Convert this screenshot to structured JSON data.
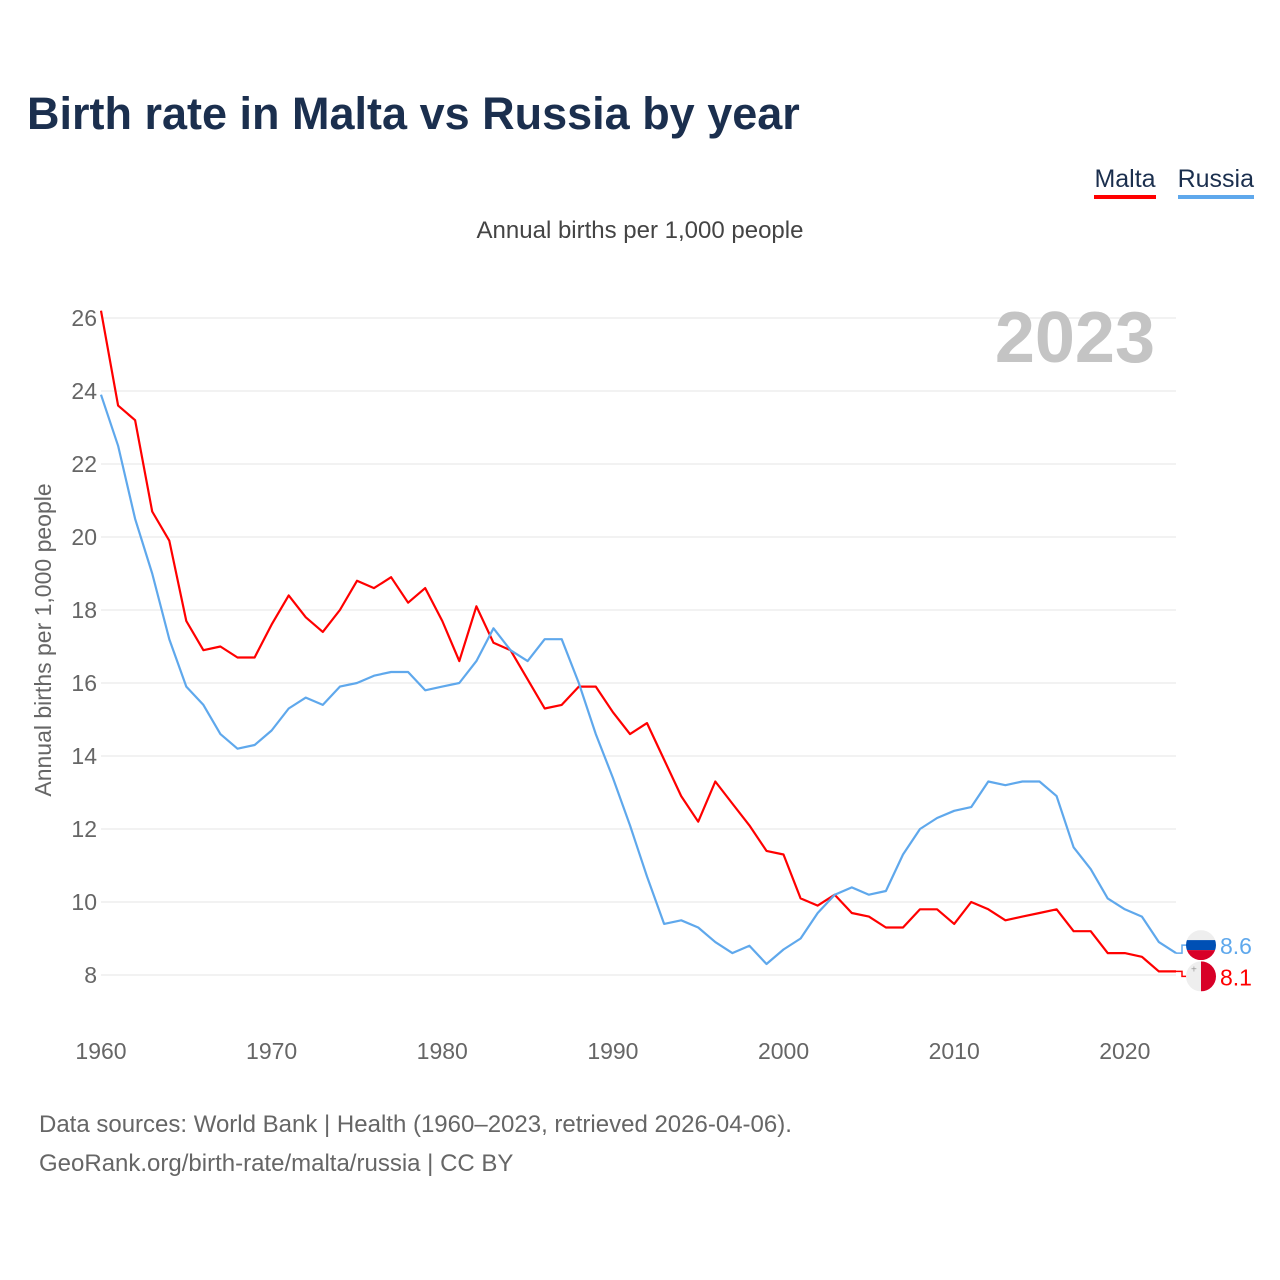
{
  "title": "Birth rate in Malta vs Russia by year",
  "subtitle": "Annual births per 1,000 people",
  "footer": {
    "line1": "Data sources: World Bank | Health (1960–2023, retrieved 2026-04-06).",
    "line2": "GeoRank.org/birth-rate/malta/russia | CC BY"
  },
  "chart_data": {
    "type": "line",
    "title": "Birth rate in Malta vs Russia by year",
    "ylabel": "Annual births per 1,000 people",
    "xlabel": "",
    "year_watermark": "2023",
    "xlim": [
      1960,
      2023
    ],
    "ylim": [
      7,
      26.5
    ],
    "xticks": [
      "1960",
      "1970",
      "1980",
      "1990",
      "2000",
      "2010",
      "2020"
    ],
    "yticks": [
      "8",
      "10",
      "12",
      "14",
      "16",
      "18",
      "20",
      "22",
      "24",
      "26"
    ],
    "grid": true,
    "legend_position": "top-right",
    "x": [
      1960,
      1961,
      1962,
      1963,
      1964,
      1965,
      1966,
      1967,
      1968,
      1969,
      1970,
      1971,
      1972,
      1973,
      1974,
      1975,
      1976,
      1977,
      1978,
      1979,
      1980,
      1981,
      1982,
      1983,
      1984,
      1985,
      1986,
      1987,
      1988,
      1989,
      1990,
      1991,
      1992,
      1993,
      1994,
      1995,
      1996,
      1997,
      1998,
      1999,
      2000,
      2001,
      2002,
      2003,
      2004,
      2005,
      2006,
      2007,
      2008,
      2009,
      2010,
      2011,
      2012,
      2013,
      2014,
      2015,
      2016,
      2017,
      2018,
      2019,
      2020,
      2021,
      2022,
      2023
    ],
    "series": [
      {
        "name": "Malta",
        "color": "#ff0000",
        "end_label": "8.1",
        "values": [
          26.2,
          23.6,
          23.2,
          20.7,
          19.9,
          17.7,
          16.9,
          17.0,
          16.7,
          16.7,
          17.6,
          18.4,
          17.8,
          17.4,
          18.0,
          18.8,
          18.6,
          18.9,
          18.2,
          18.6,
          17.7,
          16.6,
          18.1,
          17.1,
          16.9,
          16.1,
          15.3,
          15.4,
          15.9,
          15.9,
          15.2,
          14.6,
          14.9,
          13.9,
          12.9,
          12.2,
          13.3,
          12.7,
          12.1,
          11.4,
          11.3,
          10.1,
          9.9,
          10.2,
          9.7,
          9.6,
          9.3,
          9.3,
          9.8,
          9.8,
          9.4,
          10.0,
          9.8,
          9.5,
          9.6,
          9.7,
          9.8,
          9.2,
          9.2,
          8.6,
          8.6,
          8.5,
          8.1,
          8.1
        ]
      },
      {
        "name": "Russia",
        "color": "#5fa8ec",
        "end_label": "8.6",
        "values": [
          23.9,
          22.5,
          20.5,
          19.0,
          17.2,
          15.9,
          15.4,
          14.6,
          14.2,
          14.3,
          14.7,
          15.3,
          15.6,
          15.4,
          15.9,
          16.0,
          16.2,
          16.3,
          16.3,
          15.8,
          15.9,
          16.0,
          16.6,
          17.5,
          16.9,
          16.6,
          17.2,
          17.2,
          16.0,
          14.6,
          13.4,
          12.1,
          10.7,
          9.4,
          9.5,
          9.3,
          8.9,
          8.6,
          8.8,
          8.3,
          8.7,
          9.0,
          9.7,
          10.2,
          10.4,
          10.2,
          10.3,
          11.3,
          12.0,
          12.3,
          12.5,
          12.6,
          13.3,
          13.2,
          13.3,
          13.3,
          12.9,
          11.5,
          10.9,
          10.1,
          9.8,
          9.6,
          8.9,
          8.6
        ]
      }
    ]
  }
}
